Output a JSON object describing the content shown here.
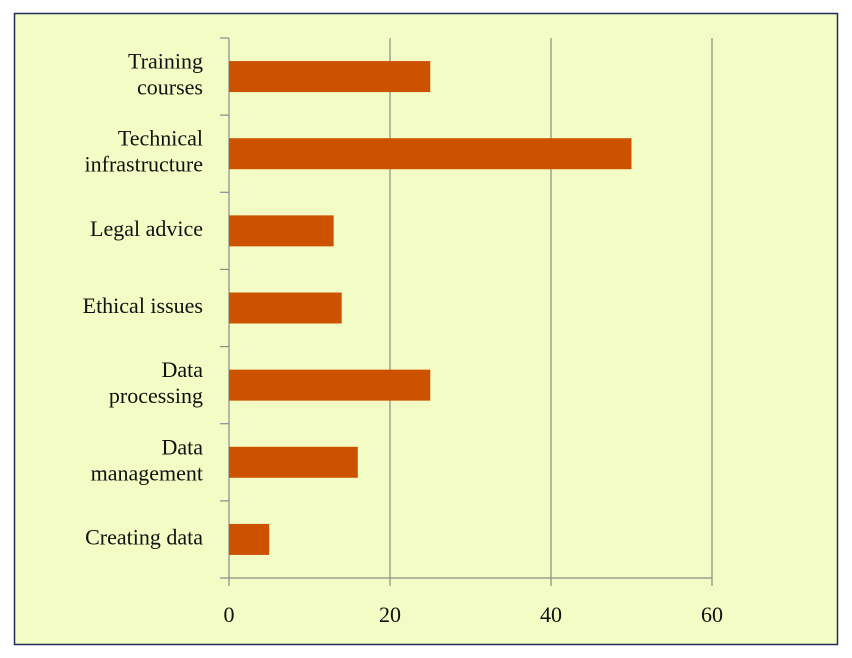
{
  "chart_data": {
    "type": "barh",
    "categories": [
      "Training\ncourses",
      "Technical\ninfrastructure",
      "Legal advice",
      "Ethical issues",
      "Data\nprocessing",
      "Data\nmanagement",
      "Creating data"
    ],
    "values": [
      25,
      50,
      13,
      14,
      25,
      16,
      5
    ],
    "color": "#cc5200",
    "xlim": [
      0,
      60
    ],
    "xticks": [
      0,
      20,
      40,
      60
    ],
    "grid": true
  }
}
